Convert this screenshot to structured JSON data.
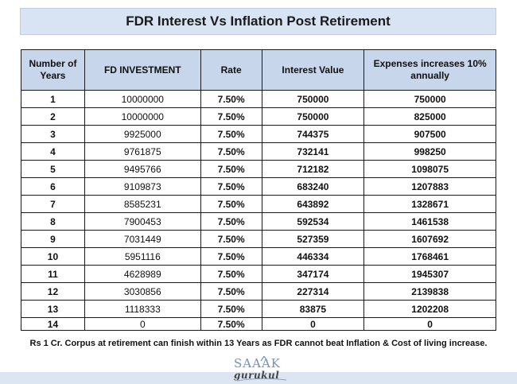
{
  "title": "FDR Interest Vs Inflation Post Retirement",
  "headers": {
    "years": "Number of Years",
    "investment": "FD INVESTMENT",
    "rate": "Rate",
    "interest": "Interest Value",
    "expenses": "Expenses increases 10% annually"
  },
  "rows": [
    {
      "year": "1",
      "investment": "10000000",
      "rate": "7.50%",
      "interest": "750000",
      "expenses": "750000"
    },
    {
      "year": "2",
      "investment": "10000000",
      "rate": "7.50%",
      "interest": "750000",
      "expenses": "825000"
    },
    {
      "year": "3",
      "investment": "9925000",
      "rate": "7.50%",
      "interest": "744375",
      "expenses": "907500"
    },
    {
      "year": "4",
      "investment": "9761875",
      "rate": "7.50%",
      "interest": "732141",
      "expenses": "998250"
    },
    {
      "year": "5",
      "investment": "9495766",
      "rate": "7.50%",
      "interest": "712182",
      "expenses": "1098075"
    },
    {
      "year": "6",
      "investment": "9109873",
      "rate": "7.50%",
      "interest": "683240",
      "expenses": "1207883"
    },
    {
      "year": "7",
      "investment": "8585231",
      "rate": "7.50%",
      "interest": "643892",
      "expenses": "1328671"
    },
    {
      "year": "8",
      "investment": "7900453",
      "rate": "7.50%",
      "interest": "592534",
      "expenses": "1461538"
    },
    {
      "year": "9",
      "investment": "7031449",
      "rate": "7.50%",
      "interest": "527359",
      "expenses": "1607692"
    },
    {
      "year": "10",
      "investment": "5951116",
      "rate": "7.50%",
      "interest": "446334",
      "expenses": "1768461"
    },
    {
      "year": "11",
      "investment": "4628989",
      "rate": "7.50%",
      "interest": "347174",
      "expenses": "1945307"
    },
    {
      "year": "12",
      "investment": "3030856",
      "rate": "7.50%",
      "interest": "227314",
      "expenses": "2139838"
    },
    {
      "year": "13",
      "investment": "1118333",
      "rate": "7.50%",
      "interest": "83875",
      "expenses": "1202208"
    },
    {
      "year": "14",
      "investment": "0",
      "rate": "7.50%",
      "interest": "0",
      "expenses": "0"
    }
  ],
  "note": "Rs 1 Cr. Corpus at retirement can finish within 13 Years as FDR cannot beat Inflation & Cost of living increase.",
  "logo": {
    "top": "SAAAK",
    "bottom": "gurukul"
  }
}
